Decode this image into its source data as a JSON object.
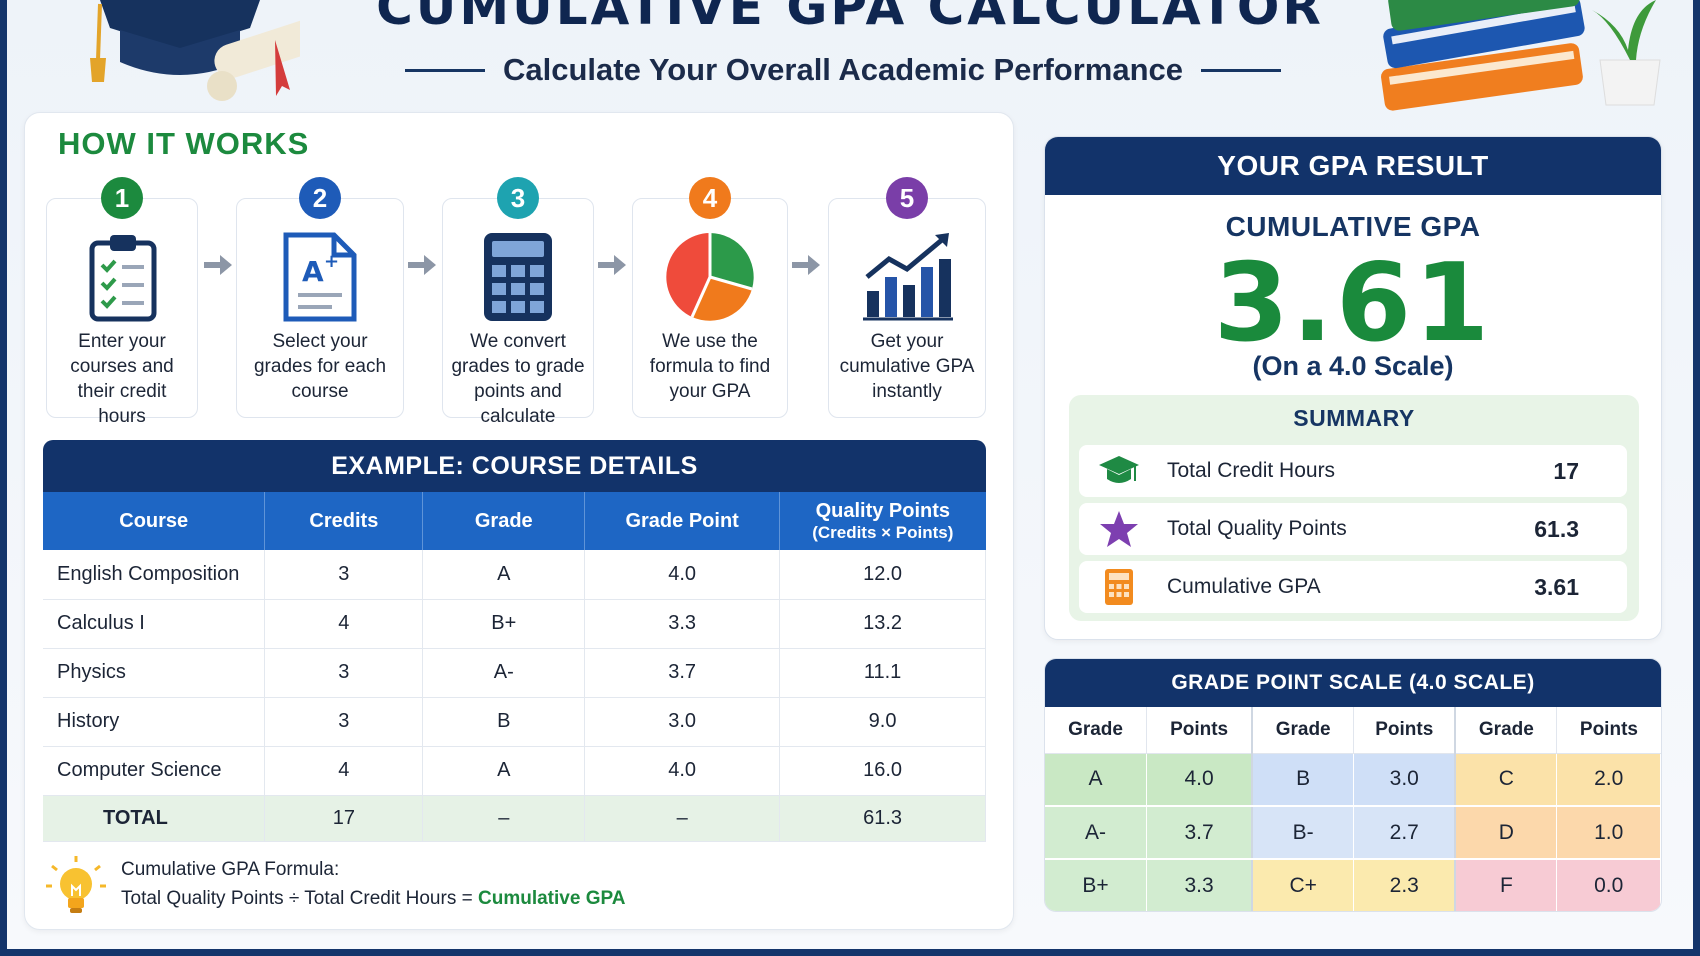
{
  "header": {
    "title": "CUMULATIVE GPA CALCULATOR",
    "subtitle": "Calculate Your Overall Academic Performance"
  },
  "how_it_works": {
    "title": "HOW IT WORKS",
    "steps": [
      {
        "num": "1",
        "text": "Enter your courses and their credit hours",
        "color": "#1c8a3e",
        "icon": "clipboard-checklist-icon"
      },
      {
        "num": "2",
        "text": "Select your grades for each course",
        "color": "#1e5bb8",
        "icon": "grade-document-icon"
      },
      {
        "num": "3",
        "text": "We convert grades to grade points and calculate",
        "color": "#1ea3b0",
        "icon": "calculator-icon"
      },
      {
        "num": "4",
        "text": "We use the formula to find your GPA",
        "color": "#f07a1c",
        "icon": "pie-chart-icon"
      },
      {
        "num": "5",
        "text": "Get your cumulative GPA instantly",
        "color": "#7a3ea8",
        "icon": "bar-chart-trend-icon"
      }
    ]
  },
  "courses": {
    "title": "EXAMPLE: COURSE DETAILS",
    "headers": [
      "Course",
      "Credits",
      "Grade",
      "Grade Point",
      "Quality Points",
      "(Credits × Points)"
    ],
    "rows": [
      [
        "English Composition",
        "3",
        "A",
        "4.0",
        "12.0"
      ],
      [
        "Calculus I",
        "4",
        "B+",
        "3.3",
        "13.2"
      ],
      [
        "Physics",
        "3",
        "A-",
        "3.7",
        "11.1"
      ],
      [
        "History",
        "3",
        "B",
        "3.0",
        "9.0"
      ],
      [
        "Computer Science",
        "4",
        "A",
        "4.0",
        "16.0"
      ]
    ],
    "total": [
      "TOTAL",
      "17",
      "–",
      "–",
      "61.3"
    ]
  },
  "formula": {
    "label": "Cumulative GPA Formula:",
    "text": "Total Quality Points ÷ Total Credit Hours =",
    "result": "Cumulative GPA"
  },
  "result": {
    "header": "YOUR GPA RESULT",
    "label": "CUMULATIVE GPA",
    "value": "3.61",
    "scale": "(On a 4.0 Scale)",
    "summary_title": "SUMMARY",
    "summary": [
      {
        "label": "Total Credit Hours",
        "value": "17",
        "icon": "graduation-cap-icon"
      },
      {
        "label": "Total Quality Points",
        "value": "61.3",
        "icon": "star-icon"
      },
      {
        "label": "Cumulative GPA",
        "value": "3.61",
        "icon": "calculator-icon"
      }
    ]
  },
  "grade_scale": {
    "title": "GRADE POINT SCALE (4.0 SCALE)",
    "col_headers": [
      "Grade",
      "Points",
      "Grade",
      "Points",
      "Grade",
      "Points"
    ],
    "rows": [
      [
        {
          "g": "A",
          "p": "4.0",
          "c": "#c9e8c4"
        },
        {
          "g": "B",
          "p": "3.0",
          "c": "#cfdff7"
        },
        {
          "g": "C",
          "p": "2.0",
          "c": "#fbe2a9"
        }
      ],
      [
        {
          "g": "A-",
          "p": "3.7",
          "c": "#d2ecd0"
        },
        {
          "g": "B-",
          "p": "2.7",
          "c": "#d7e4f7"
        },
        {
          "g": "D",
          "p": "1.0",
          "c": "#fcd8ab"
        }
      ],
      [
        {
          "g": "B+",
          "p": "3.3",
          "c": "#d2ecd0"
        },
        {
          "g": "C+",
          "p": "2.3",
          "c": "#fbeaae"
        },
        {
          "g": "F",
          "p": "0.0",
          "c": "#f7cbd4"
        }
      ]
    ]
  },
  "colors": {
    "navy": "#12336a",
    "green": "#1a8a3c",
    "table_header": "#1e66c4"
  }
}
